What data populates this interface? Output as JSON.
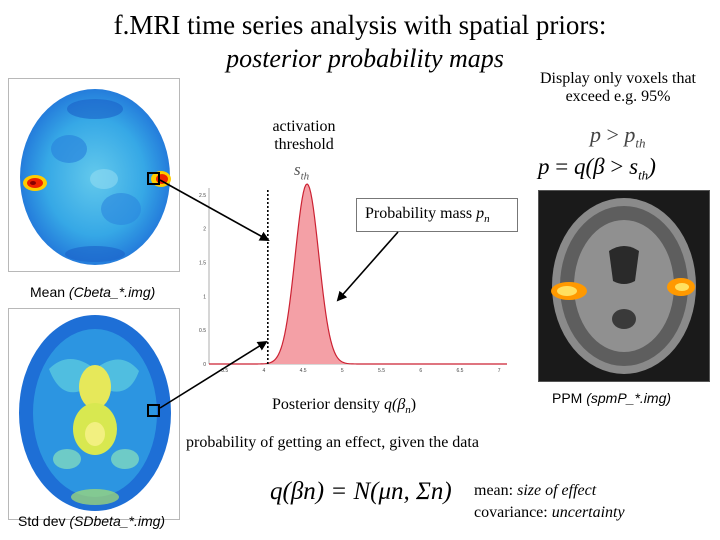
{
  "title": {
    "line1": "f.MRI time series analysis with spatial priors:",
    "line2": "posterior probability maps"
  },
  "display_note": {
    "line1": "Display only voxels that",
    "line2": "exceed e.g. 95%"
  },
  "threshold_label": {
    "line1": "activation",
    "line2": "threshold"
  },
  "sth_label": {
    "symbol": "s",
    "sub": "th"
  },
  "probability_mass": {
    "text": "Probability mass ",
    "symbol": "p",
    "sub": "n"
  },
  "formulas": {
    "p_gt": {
      "left": "p",
      "op": " > ",
      "right": "p",
      "sub": "th"
    },
    "p_eq": {
      "lhs": "p",
      "eq": " = ",
      "q": "q(",
      "beta": "β",
      "gt": " > ",
      "s": "s",
      "sub": "th",
      "close": ")"
    },
    "posterior": "q(βn) = N(μn, Σn)"
  },
  "mean_label": {
    "text": "Mean ",
    "file": "(Cbeta_*.img)"
  },
  "std_label": {
    "text": "Std dev ",
    "file": "(SDbeta_*.img)"
  },
  "ppm_label": {
    "text": "PPM ",
    "file": "(spmP_*.img)"
  },
  "posterior_density": {
    "text": "Posterior density ",
    "q": "q(β",
    "sub": "n",
    "close": ")"
  },
  "probability_text": "probability of getting an effect, given the data",
  "mean_def": {
    "label": "mean:",
    "value": "size of effect"
  },
  "cov_def": {
    "label": "covariance:",
    "value": "uncertainty"
  },
  "chart_data": {
    "type": "area",
    "x_ticks": [
      "3.5",
      "4",
      "4.5",
      "5",
      "5.5",
      "6",
      "6.5",
      "7"
    ],
    "y_ticks": [
      "0",
      "0.5",
      "1",
      "1.5",
      "2",
      "2.5"
    ],
    "xlim": [
      3.3,
      7.1
    ],
    "ylim": [
      0,
      2.6
    ],
    "threshold": 4.05,
    "mean": 4.55,
    "sd": 0.15,
    "fill_color": "#f4a0a6",
    "line_color": "#cc2233"
  },
  "colors": {
    "arrow": "#000000",
    "box_border": "#777777"
  }
}
